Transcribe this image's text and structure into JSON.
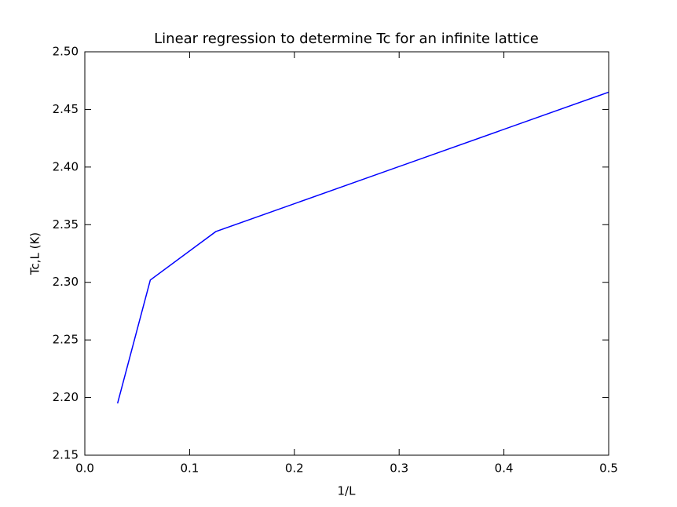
{
  "chart_data": {
    "type": "line",
    "title": "Linear regression to determine Tc for an infinite lattice",
    "xlabel": "1/L",
    "ylabel": "Tc,L (K)",
    "x": [
      0.03125,
      0.0625,
      0.125,
      0.5
    ],
    "values": [
      2.195,
      2.302,
      2.344,
      2.465
    ],
    "color": "#0000ff",
    "xlim": [
      0,
      0.5
    ],
    "xticks": [
      {
        "value": 0,
        "label": "0.0"
      },
      0.1,
      0.2,
      0.3,
      0.4,
      0.5
    ],
    "ylim": [
      2.15,
      2.5
    ],
    "yticks": [
      2.15,
      {
        "value": 2.2,
        "label": "2.20"
      },
      2.25,
      {
        "value": 2.3,
        "label": "2.30"
      },
      2.35,
      {
        "value": 2.4,
        "label": "2.40"
      },
      2.45,
      {
        "value": 2.5,
        "label": "2.50"
      }
    ],
    "grid": false
  }
}
